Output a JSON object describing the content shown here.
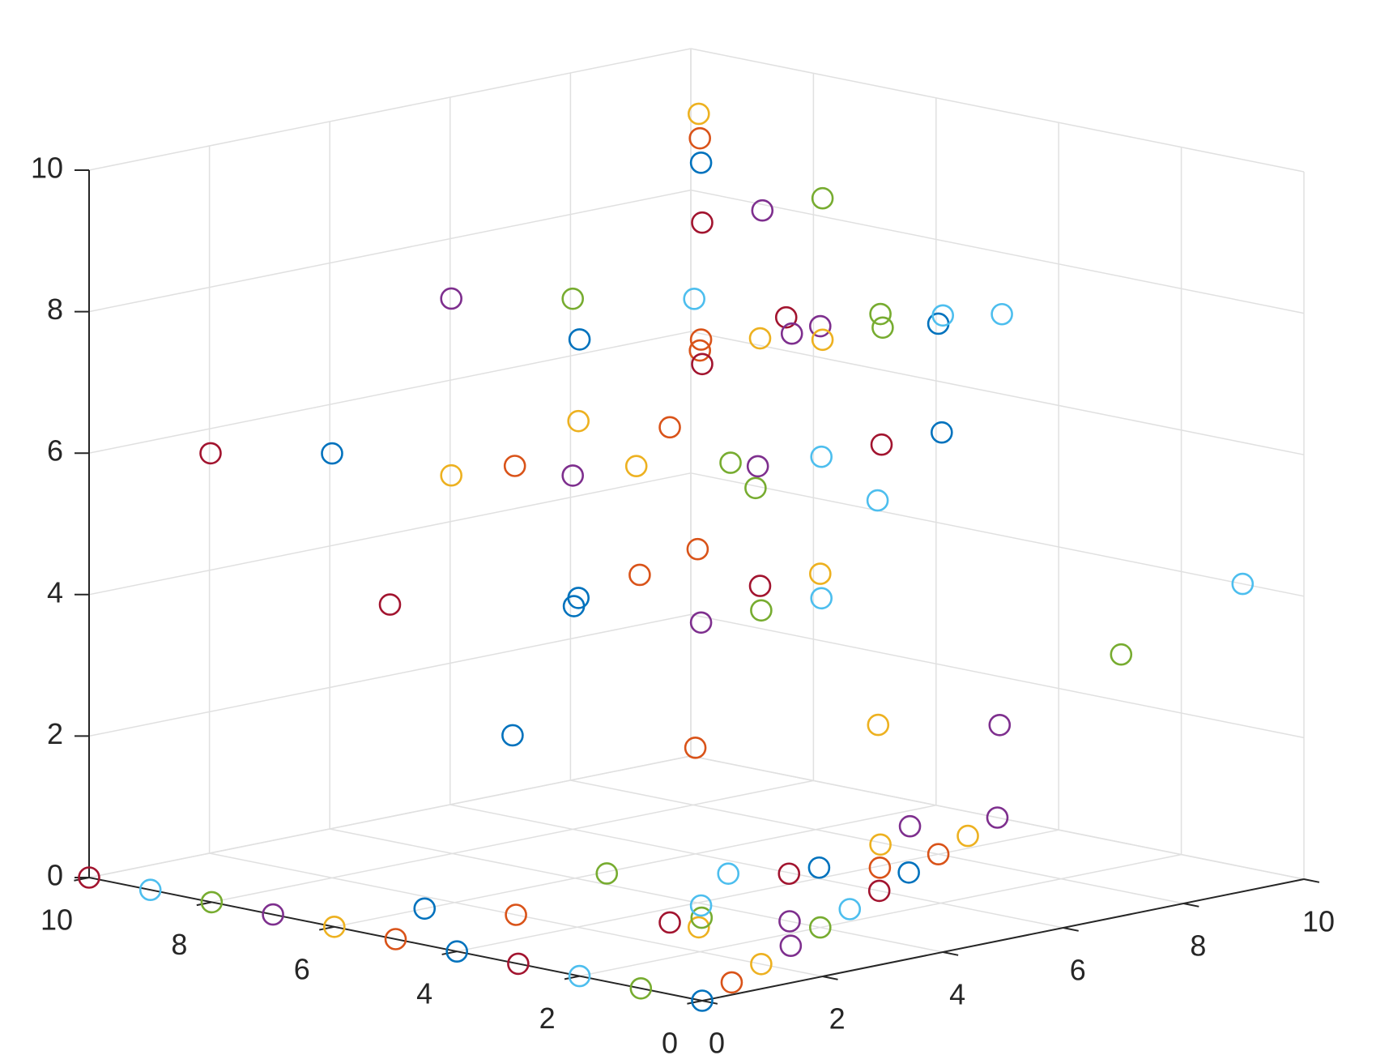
{
  "chart_data": {
    "type": "scatter",
    "title": "",
    "xlabel": "",
    "ylabel": "",
    "zlabel": "",
    "xlim": [
      0,
      10
    ],
    "ylim": [
      0,
      10
    ],
    "zlim": [
      0,
      10
    ],
    "grid": true,
    "x_ticks": [
      "0",
      "2",
      "4",
      "6",
      "8",
      "10"
    ],
    "y_ticks": [
      "0",
      "2",
      "4",
      "6",
      "8",
      "10"
    ],
    "z_ticks": [
      "0",
      "2",
      "4",
      "6",
      "8",
      "10"
    ],
    "colors": [
      "#0072BD",
      "#D95319",
      "#EDB120",
      "#7E2F8E",
      "#77AC30",
      "#4DBEEE",
      "#A2142F"
    ],
    "points": [
      [
        0,
        0,
        0
      ],
      [
        1,
        0.5,
        0
      ],
      [
        2,
        1,
        0
      ],
      [
        3,
        1.5,
        0
      ],
      [
        4,
        2,
        0
      ],
      [
        5,
        2.5,
        0
      ],
      [
        6,
        3,
        0
      ],
      [
        7,
        3.5,
        0
      ],
      [
        8,
        4,
        0
      ],
      [
        9,
        4.5,
        0
      ],
      [
        10,
        5,
        0
      ],
      [
        0,
        1,
        0
      ],
      [
        0,
        2,
        0
      ],
      [
        0,
        3,
        0
      ],
      [
        0,
        4,
        0
      ],
      [
        0,
        5,
        0
      ],
      [
        0,
        6,
        0
      ],
      [
        0,
        7,
        0
      ],
      [
        0,
        8,
        0
      ],
      [
        0,
        9,
        0
      ],
      [
        0,
        10,
        0
      ],
      [
        1.5,
        6,
        0
      ],
      [
        2,
        5,
        0
      ],
      [
        3,
        3,
        0
      ],
      [
        4,
        2.5,
        0
      ],
      [
        3,
        4.5,
        0.5
      ],
      [
        4,
        3.5,
        0.5
      ],
      [
        4.5,
        3,
        0.5
      ],
      [
        5,
        3,
        0.5
      ],
      [
        5.5,
        2.5,
        0.5
      ],
      [
        5,
        2,
        1
      ],
      [
        6,
        2.5,
        1
      ],
      [
        0.5,
        0.5,
        1
      ],
      [
        1,
        1,
        1
      ],
      [
        1.5,
        2,
        0.5
      ],
      [
        5,
        8,
        1.5
      ],
      [
        6,
        6,
        1.5
      ],
      [
        7,
        4,
        2
      ],
      [
        8,
        3,
        2
      ],
      [
        9,
        2,
        3
      ],
      [
        10,
        1,
        4
      ],
      [
        5,
        10,
        3
      ],
      [
        5,
        7,
        3.5
      ],
      [
        4,
        4,
        5
      ],
      [
        4,
        2,
        5
      ],
      [
        1,
        1,
        5
      ],
      [
        2,
        1,
        5
      ],
      [
        3,
        1,
        5
      ],
      [
        3,
        2,
        5
      ],
      [
        1,
        3,
        5
      ],
      [
        1,
        2,
        5.5
      ],
      [
        5,
        9,
        5
      ],
      [
        6,
        8,
        5
      ],
      [
        7,
        6,
        5
      ],
      [
        7.5,
        4.5,
        5
      ],
      [
        1,
        9,
        6
      ],
      [
        2,
        8,
        6
      ],
      [
        3,
        6,
        6
      ],
      [
        4,
        5,
        6
      ],
      [
        5,
        4,
        6
      ],
      [
        2,
        1.5,
        7
      ],
      [
        3,
        1,
        7
      ],
      [
        4,
        1,
        7
      ],
      [
        5,
        1,
        7
      ],
      [
        1.5,
        2,
        7.5
      ],
      [
        1,
        3,
        7.5
      ],
      [
        5,
        9,
        7.5
      ],
      [
        6,
        8,
        7.5
      ],
      [
        7,
        7,
        7.5
      ],
      [
        7,
        5.5,
        7.5
      ],
      [
        8,
        4,
        7.5
      ],
      [
        2,
        2,
        8.5
      ],
      [
        3,
        2,
        8.5
      ],
      [
        4,
        2,
        8.5
      ],
      [
        5,
        2,
        8.5
      ],
      [
        6,
        1,
        8.5
      ],
      [
        0,
        0,
        9
      ],
      [
        0,
        2,
        9
      ],
      [
        1,
        1,
        9
      ],
      [
        2,
        0,
        9
      ],
      [
        2,
        0.5,
        9
      ],
      [
        3,
        0,
        9
      ],
      [
        4,
        0,
        9
      ],
      [
        0,
        0,
        11
      ],
      [
        1,
        1,
        11.5
      ],
      [
        2,
        2,
        11.5
      ],
      [
        3,
        3,
        11.5
      ],
      [
        1,
        0,
        11
      ],
      [
        2,
        0,
        11
      ]
    ]
  }
}
